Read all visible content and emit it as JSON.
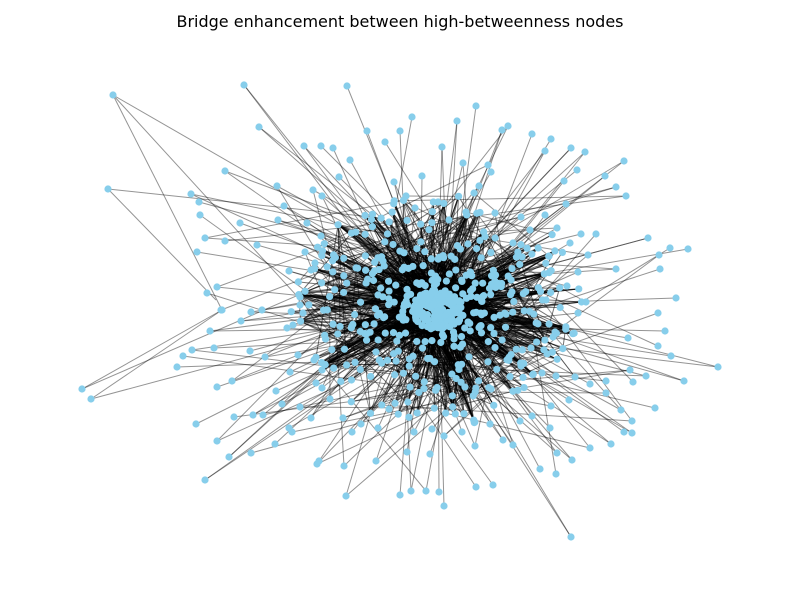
{
  "title": "Bridge enhancement between high-betweenness nodes",
  "colors": {
    "background": "#ffffff",
    "node": "#87ceeb",
    "edge": "#000000"
  }
}
